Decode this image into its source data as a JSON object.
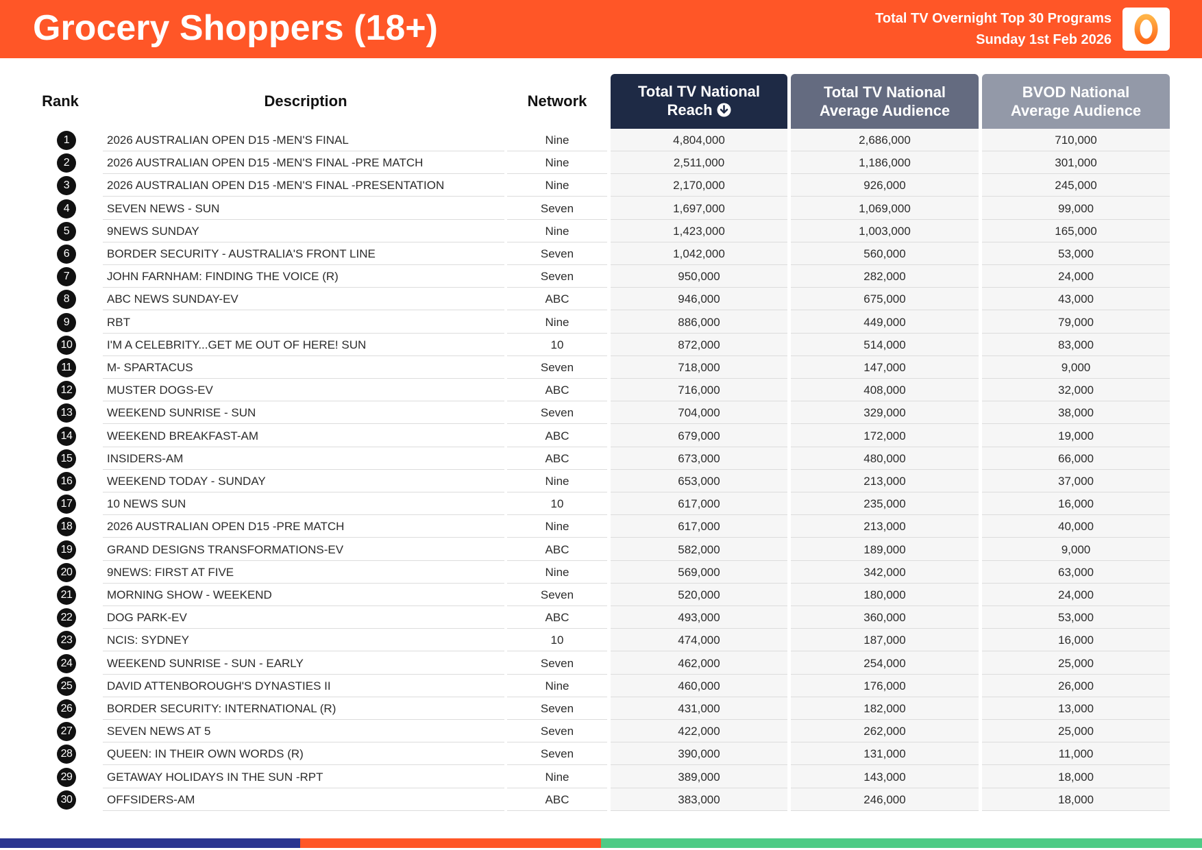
{
  "header": {
    "title": "Grocery Shoppers (18+)",
    "subtitle_line1": "Total TV Overnight Top 30 Programs",
    "subtitle_line2": "Sunday 1st Feb 2026",
    "logo_text": "0"
  },
  "colors": {
    "header_bg": "#ff5627",
    "col_reach_header": "#1e2a45",
    "col_avg_header": "#646b80",
    "col_bvod_header": "#9399a8",
    "footer_blue": "#2a3590",
    "footer_orange": "#ff5627",
    "footer_green": "#4dcb85"
  },
  "table": {
    "columns": {
      "rank": "Rank",
      "description": "Description",
      "network": "Network",
      "reach_line1": "Total TV National",
      "reach_line2": "Reach",
      "avg_line1": "Total TV National",
      "avg_line2": "Average Audience",
      "bvod_line1": "BVOD National",
      "bvod_line2": "Average Audience"
    },
    "sort_icon": "arrow-down-circle-icon",
    "rows": [
      {
        "rank": "1",
        "description": "2026 AUSTRALIAN OPEN D15 -MEN'S FINAL",
        "network": "Nine",
        "reach": "4,804,000",
        "avg": "2,686,000",
        "bvod": "710,000"
      },
      {
        "rank": "2",
        "description": "2026 AUSTRALIAN OPEN D15 -MEN'S FINAL -PRE MATCH",
        "network": "Nine",
        "reach": "2,511,000",
        "avg": "1,186,000",
        "bvod": "301,000"
      },
      {
        "rank": "3",
        "description": "2026 AUSTRALIAN OPEN D15 -MEN'S FINAL -PRESENTATION",
        "network": "Nine",
        "reach": "2,170,000",
        "avg": "926,000",
        "bvod": "245,000"
      },
      {
        "rank": "4",
        "description": "SEVEN NEWS - SUN",
        "network": "Seven",
        "reach": "1,697,000",
        "avg": "1,069,000",
        "bvod": "99,000"
      },
      {
        "rank": "5",
        "description": "9NEWS SUNDAY",
        "network": "Nine",
        "reach": "1,423,000",
        "avg": "1,003,000",
        "bvod": "165,000"
      },
      {
        "rank": "6",
        "description": "BORDER SECURITY - AUSTRALIA'S FRONT LINE",
        "network": "Seven",
        "reach": "1,042,000",
        "avg": "560,000",
        "bvod": "53,000"
      },
      {
        "rank": "7",
        "description": "JOHN FARNHAM: FINDING THE VOICE (R)",
        "network": "Seven",
        "reach": "950,000",
        "avg": "282,000",
        "bvod": "24,000"
      },
      {
        "rank": "8",
        "description": "ABC NEWS SUNDAY-EV",
        "network": "ABC",
        "reach": "946,000",
        "avg": "675,000",
        "bvod": "43,000"
      },
      {
        "rank": "9",
        "description": "RBT",
        "network": "Nine",
        "reach": "886,000",
        "avg": "449,000",
        "bvod": "79,000"
      },
      {
        "rank": "10",
        "description": "I'M A CELEBRITY...GET ME OUT OF HERE! SUN",
        "network": "10",
        "reach": "872,000",
        "avg": "514,000",
        "bvod": "83,000"
      },
      {
        "rank": "11",
        "description": "M- SPARTACUS",
        "network": "Seven",
        "reach": "718,000",
        "avg": "147,000",
        "bvod": "9,000"
      },
      {
        "rank": "12",
        "description": "MUSTER DOGS-EV",
        "network": "ABC",
        "reach": "716,000",
        "avg": "408,000",
        "bvod": "32,000"
      },
      {
        "rank": "13",
        "description": "WEEKEND SUNRISE - SUN",
        "network": "Seven",
        "reach": "704,000",
        "avg": "329,000",
        "bvod": "38,000"
      },
      {
        "rank": "14",
        "description": "WEEKEND BREAKFAST-AM",
        "network": "ABC",
        "reach": "679,000",
        "avg": "172,000",
        "bvod": "19,000"
      },
      {
        "rank": "15",
        "description": "INSIDERS-AM",
        "network": "ABC",
        "reach": "673,000",
        "avg": "480,000",
        "bvod": "66,000"
      },
      {
        "rank": "16",
        "description": "WEEKEND TODAY - SUNDAY",
        "network": "Nine",
        "reach": "653,000",
        "avg": "213,000",
        "bvod": "37,000"
      },
      {
        "rank": "17",
        "description": "10 NEWS SUN",
        "network": "10",
        "reach": "617,000",
        "avg": "235,000",
        "bvod": "16,000"
      },
      {
        "rank": "18",
        "description": "2026 AUSTRALIAN OPEN D15 -PRE MATCH",
        "network": "Nine",
        "reach": "617,000",
        "avg": "213,000",
        "bvod": "40,000"
      },
      {
        "rank": "19",
        "description": "GRAND DESIGNS TRANSFORMATIONS-EV",
        "network": "ABC",
        "reach": "582,000",
        "avg": "189,000",
        "bvod": "9,000"
      },
      {
        "rank": "20",
        "description": "9NEWS: FIRST AT FIVE",
        "network": "Nine",
        "reach": "569,000",
        "avg": "342,000",
        "bvod": "63,000"
      },
      {
        "rank": "21",
        "description": "MORNING SHOW - WEEKEND",
        "network": "Seven",
        "reach": "520,000",
        "avg": "180,000",
        "bvod": "24,000"
      },
      {
        "rank": "22",
        "description": "DOG PARK-EV",
        "network": "ABC",
        "reach": "493,000",
        "avg": "360,000",
        "bvod": "53,000"
      },
      {
        "rank": "23",
        "description": "NCIS: SYDNEY",
        "network": "10",
        "reach": "474,000",
        "avg": "187,000",
        "bvod": "16,000"
      },
      {
        "rank": "24",
        "description": "WEEKEND SUNRISE - SUN - EARLY",
        "network": "Seven",
        "reach": "462,000",
        "avg": "254,000",
        "bvod": "25,000"
      },
      {
        "rank": "25",
        "description": "DAVID ATTENBOROUGH'S DYNASTIES II",
        "network": "Nine",
        "reach": "460,000",
        "avg": "176,000",
        "bvod": "26,000"
      },
      {
        "rank": "26",
        "description": "BORDER SECURITY: INTERNATIONAL (R)",
        "network": "Seven",
        "reach": "431,000",
        "avg": "182,000",
        "bvod": "13,000"
      },
      {
        "rank": "27",
        "description": "SEVEN NEWS AT 5",
        "network": "Seven",
        "reach": "422,000",
        "avg": "262,000",
        "bvod": "25,000"
      },
      {
        "rank": "28",
        "description": "QUEEN: IN THEIR OWN WORDS (R)",
        "network": "Seven",
        "reach": "390,000",
        "avg": "131,000",
        "bvod": "11,000"
      },
      {
        "rank": "29",
        "description": "GETAWAY HOLIDAYS IN THE SUN -RPT",
        "network": "Nine",
        "reach": "389,000",
        "avg": "143,000",
        "bvod": "18,000"
      },
      {
        "rank": "30",
        "description": "OFFSIDERS-AM",
        "network": "ABC",
        "reach": "383,000",
        "avg": "246,000",
        "bvod": "18,000"
      }
    ]
  }
}
